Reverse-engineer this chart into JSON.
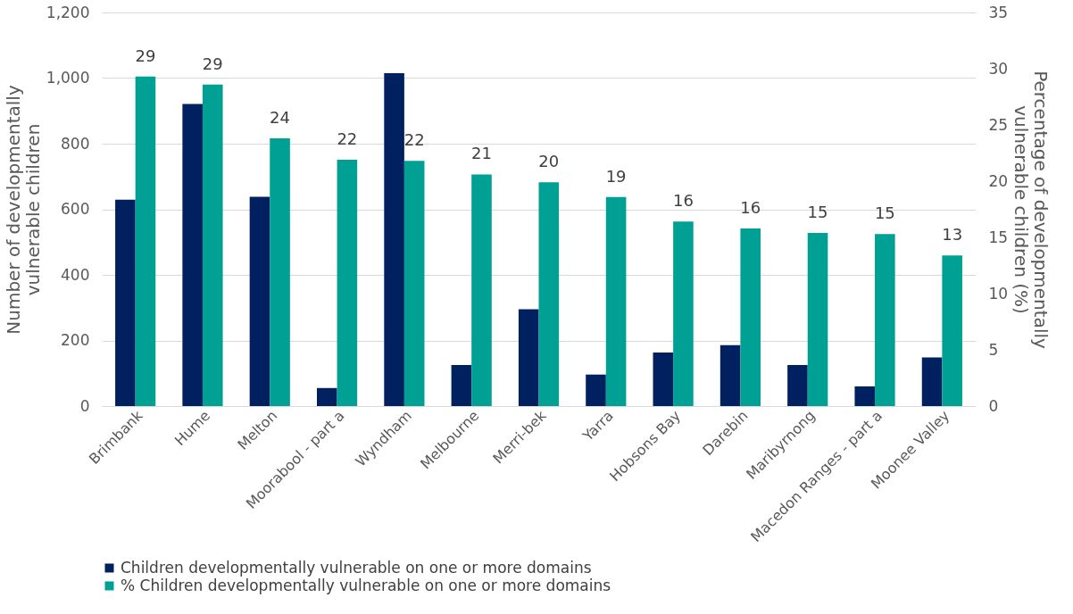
{
  "chart_data": {
    "type": "bar",
    "ylabel": "Number of developmentally vulnerable children",
    "y2label": "Percentage of developmentally vulnerable children (%)",
    "categories": [
      "Brimbank",
      "Hume",
      "Melton",
      "Moorabool - part a",
      "Wyndham",
      "Melbourne",
      "Merri-bek",
      "Yarra",
      "Hobsons Bay",
      "Darebin",
      "Maribyrnong",
      "Macedon Ranges - part a",
      "Moonee Valley"
    ],
    "series": [
      {
        "name": "Children developmentally vulnerable on one or more domains",
        "color": "#002060",
        "values": [
          629,
          921,
          638,
          55,
          1015,
          125,
          295,
          96,
          163,
          186,
          125,
          60,
          148
        ]
      },
      {
        "name": "% Children developmentally vulnerable on one or more domains",
        "color": "#00a095",
        "axis": "y2",
        "values": [
          29.3,
          28.6,
          23.8,
          21.9,
          21.8,
          20.6,
          19.9,
          18.6,
          16.4,
          15.8,
          15.4,
          15.3,
          13.4
        ],
        "value_labels": [
          "29",
          "29",
          "24",
          "22",
          "22",
          "21",
          "20",
          "19",
          "16",
          "16",
          "15",
          "15",
          "13"
        ]
      }
    ],
    "ylim": [
      0,
      1200
    ],
    "yticks": [
      0,
      200,
      400,
      600,
      800,
      {
        "value": 1000,
        "label": "1,000"
      },
      {
        "value": 1200,
        "label": "1,200"
      }
    ],
    "y2lim": [
      0,
      35
    ],
    "y2ticks": [
      0,
      5,
      10,
      15,
      20,
      25,
      30,
      35
    ],
    "grid": "y",
    "legend": "bottom"
  }
}
